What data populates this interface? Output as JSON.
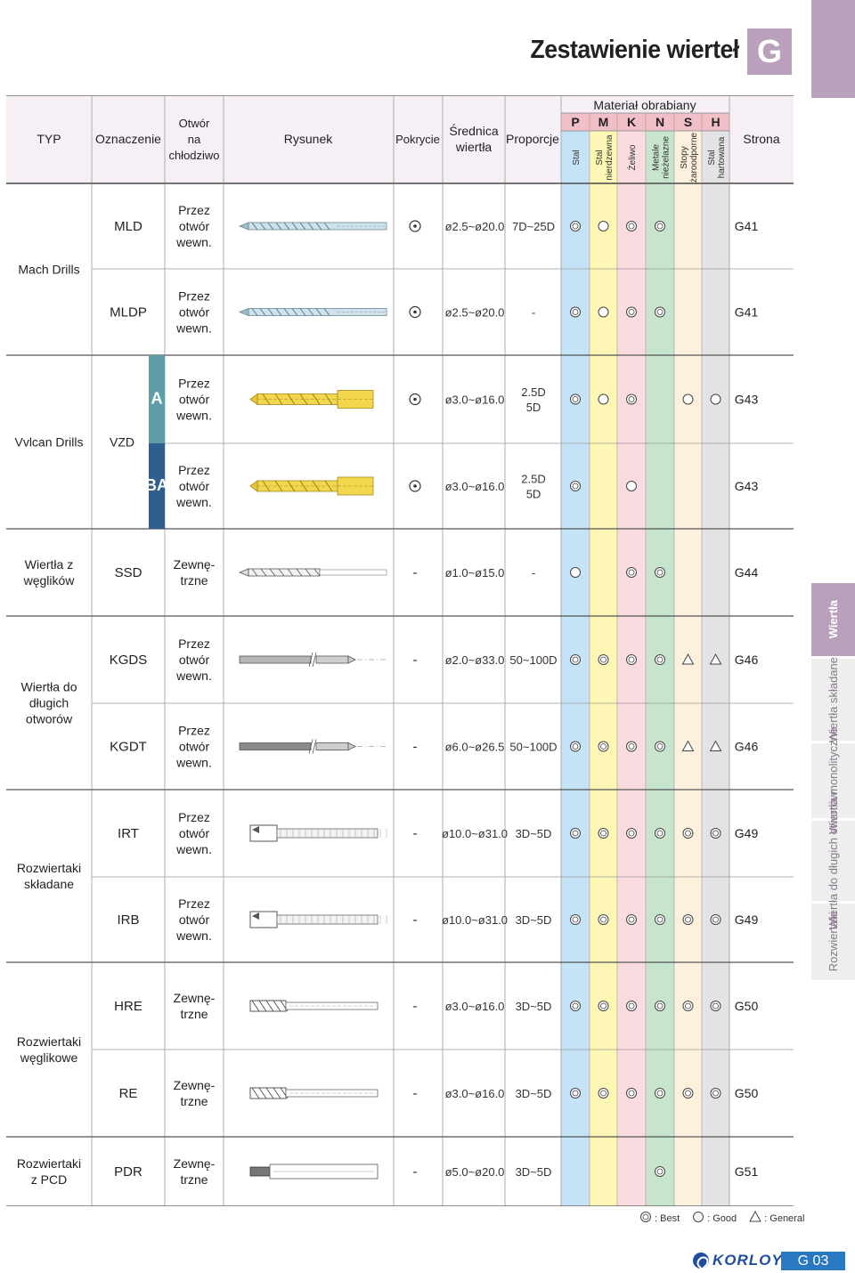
{
  "page_title": "Zestawienie wierteł",
  "section_letter": "G",
  "side_tabs": [
    "Wiertła",
    "Wiertła składane",
    "Wiertła monolityczne",
    "Wiertła do długich otworów",
    "Rozwiertaki"
  ],
  "header": {
    "typ": "TYP",
    "oznaczenie": "Oznaczenie",
    "otwor": [
      "Otwór",
      "na",
      "chłodziwo"
    ],
    "rysunek": "Rysunek",
    "pokrycie": "Pokrycie",
    "srednica": [
      "Średnica",
      "wiertła"
    ],
    "proporcje": "Proporcje",
    "material": "Materiał obrabiany",
    "iso": [
      "P",
      "M",
      "K",
      "N",
      "S",
      "H"
    ],
    "materials": [
      [
        "Stal"
      ],
      [
        "Stal",
        "nierdzewna"
      ],
      [
        "Żeliwo"
      ],
      [
        "Metale",
        "nieżelazne"
      ],
      [
        "Stopy",
        "żaroodporne"
      ],
      [
        "Stal",
        "hartowana"
      ]
    ],
    "strona": "Strona"
  },
  "iso_colors": [
    "#c5e3f6",
    "#fdf6b4",
    "#f9dbe0",
    "#c7e5cc",
    "#fdf0dc",
    "#e3e3e6"
  ],
  "iso_header_colors": [
    "#f0bfc8",
    "#f0bfc8",
    "#f0bfc8",
    "#f0bfc8",
    "#f0bfc8",
    "#f0bfc8"
  ],
  "groups": [
    {
      "type": [
        "Mach Drills"
      ]
    },
    {
      "type": [
        "Vvlcan Drills"
      ],
      "designation": "VZD"
    },
    {
      "type": [
        "Wiertła z",
        "węglików"
      ]
    },
    {
      "type": [
        "Wiertła do",
        "długich",
        "otworów"
      ]
    },
    {
      "type": [
        "Rozwiertaki",
        "składane"
      ]
    },
    {
      "type": [
        "Rozwiertaki",
        "węglikowe"
      ]
    },
    {
      "type": [
        "Rozwiertaki",
        "z PCD"
      ]
    }
  ],
  "rows": [
    {
      "code": "MLD",
      "coolant": [
        "Przez",
        "otwór",
        "wewn."
      ],
      "coating": "⊙",
      "diameter": "ø2.5~ø20.0",
      "proportion": [
        "7D~25D"
      ],
      "mat": [
        "best",
        "good",
        "best",
        "best",
        "",
        ""
      ],
      "page": "G41"
    },
    {
      "code": "MLDP",
      "coolant": [
        "Przez",
        "otwór",
        "wewn."
      ],
      "coating": "⊙",
      "diameter": "ø2.5~ø20.0",
      "proportion": [
        "-"
      ],
      "mat": [
        "best",
        "good",
        "best",
        "best",
        "",
        ""
      ],
      "page": "G41"
    },
    {
      "code": "A",
      "coolant": [
        "Przez",
        "otwór",
        "wewn."
      ],
      "coating": "⊙",
      "diameter": "ø3.0~ø16.0",
      "proportion": [
        "2.5D",
        "5D"
      ],
      "mat": [
        "best",
        "good",
        "best",
        "",
        "good",
        "good"
      ],
      "page": "G43"
    },
    {
      "code": "BA",
      "coolant": [
        "Przez",
        "otwór",
        "wewn."
      ],
      "coating": "⊙",
      "diameter": "ø3.0~ø16.0",
      "proportion": [
        "2.5D",
        "5D"
      ],
      "mat": [
        "best",
        "",
        "good",
        "",
        "",
        ""
      ],
      "page": "G43"
    },
    {
      "code": "SSD",
      "coolant": [
        "Zewnę-",
        "trzne"
      ],
      "coating": "-",
      "diameter": "ø1.0~ø15.0",
      "proportion": [
        "-"
      ],
      "mat": [
        "good",
        "",
        "best",
        "best",
        "",
        ""
      ],
      "page": "G44"
    },
    {
      "code": "KGDS",
      "coolant": [
        "Przez",
        "otwór",
        "wewn."
      ],
      "coating": "-",
      "diameter": "ø2.0~ø33.0",
      "proportion": [
        "50~100D"
      ],
      "mat": [
        "best",
        "best",
        "best",
        "best",
        "general",
        "general"
      ],
      "page": "G46"
    },
    {
      "code": "KGDT",
      "coolant": [
        "Przez",
        "otwór",
        "wewn."
      ],
      "coating": "-",
      "diameter": "ø6.0~ø26.5",
      "proportion": [
        "50~100D"
      ],
      "mat": [
        "best",
        "best",
        "best",
        "best",
        "general",
        "general"
      ],
      "page": "G46"
    },
    {
      "code": "IRT",
      "coolant": [
        "Przez",
        "otwór",
        "wewn."
      ],
      "coating": "-",
      "diameter": "ø10.0~ø31.0",
      "proportion": [
        "3D~5D"
      ],
      "mat": [
        "best",
        "best",
        "best",
        "best",
        "best",
        "best"
      ],
      "page": "G49"
    },
    {
      "code": "IRB",
      "coolant": [
        "Przez",
        "otwór",
        "wewn."
      ],
      "coating": "-",
      "diameter": "ø10.0~ø31.0",
      "proportion": [
        "3D~5D"
      ],
      "mat": [
        "best",
        "best",
        "best",
        "best",
        "best",
        "best"
      ],
      "page": "G49"
    },
    {
      "code": "HRE",
      "coolant": [
        "Zewnę-",
        "trzne"
      ],
      "coating": "-",
      "diameter": "ø3.0~ø16.0",
      "proportion": [
        "3D~5D"
      ],
      "mat": [
        "best",
        "best",
        "best",
        "best",
        "best",
        "best"
      ],
      "page": "G50"
    },
    {
      "code": "RE",
      "coolant": [
        "Zewnę-",
        "trzne"
      ],
      "coating": "-",
      "diameter": "ø3.0~ø16.0",
      "proportion": [
        "3D~5D"
      ],
      "mat": [
        "best",
        "best",
        "best",
        "best",
        "best",
        "best"
      ],
      "page": "G50"
    },
    {
      "code": "PDR",
      "coolant": [
        "Zewnę-",
        "trzne"
      ],
      "coating": "-",
      "diameter": "ø5.0~ø20.0",
      "proportion": [
        "3D~5D"
      ],
      "mat": [
        "",
        "",
        "",
        "best",
        "",
        ""
      ],
      "page": "G51"
    }
  ],
  "legend": [
    {
      "sym": "best",
      "label": ": Best"
    },
    {
      "sym": "good",
      "label": ": Good"
    },
    {
      "sym": "general",
      "label": ": General"
    }
  ],
  "footer": {
    "brand": "KORLOY",
    "page_number": "G 03"
  }
}
